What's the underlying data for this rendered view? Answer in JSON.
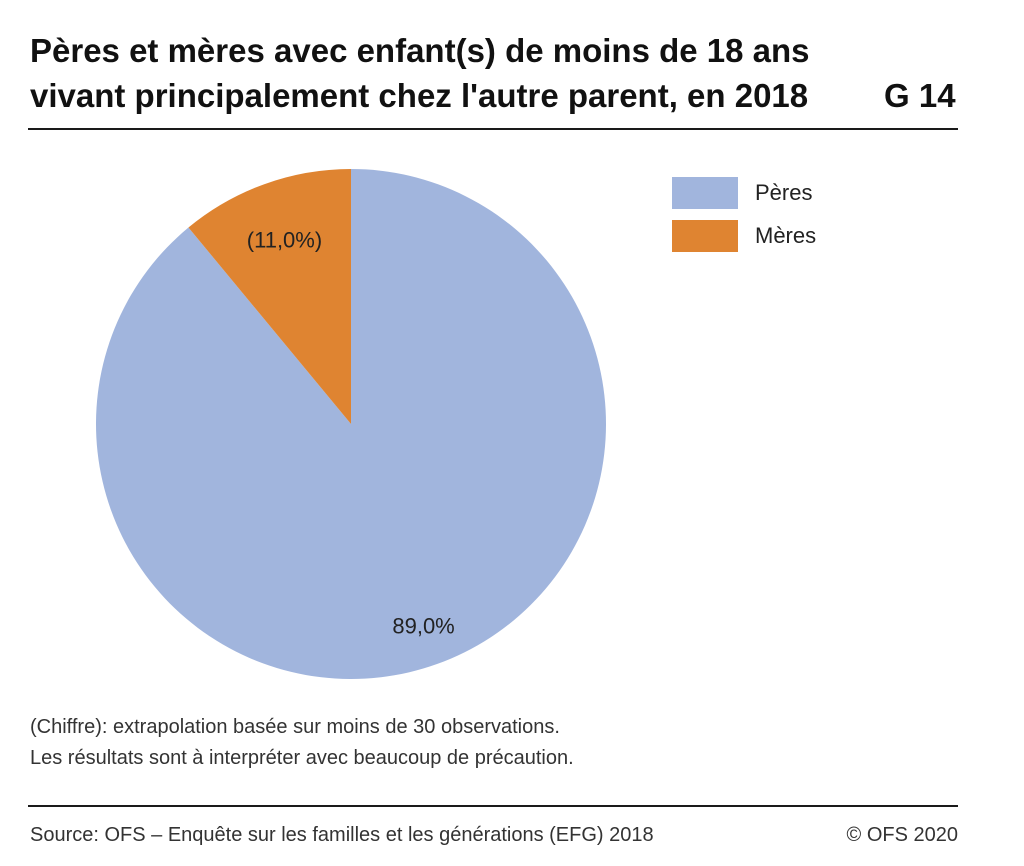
{
  "header": {
    "title_line1": "Pères et mères avec enfant(s) de moins de 18 ans",
    "title_line2": "vivant principalement chez l'autre parent, en 2018",
    "chart_id": "G 14"
  },
  "chart_data": {
    "type": "pie",
    "title": "Pères et mères avec enfant(s) de moins de 18 ans vivant principalement chez l'autre parent, en 2018",
    "slices": [
      {
        "label": "Pères",
        "value": 89.0,
        "data_label": "89,0%",
        "color": "#a1b5dd"
      },
      {
        "label": "Mères",
        "value": 11.0,
        "data_label": "(11,0%)",
        "color": "#df8431"
      }
    ],
    "start_angle": "12 o'clock",
    "direction": "clockwise",
    "legend_position": "top-right"
  },
  "notes": {
    "line1": "(Chiffre): extrapolation basée sur moins de 30 observations.",
    "line2": "Les résultats sont à interpréter avec beaucoup de précaution."
  },
  "footer": {
    "source": "Source: OFS – Enquête sur les familles et les générations (EFG) 2018",
    "copyright": "© OFS 2020"
  }
}
